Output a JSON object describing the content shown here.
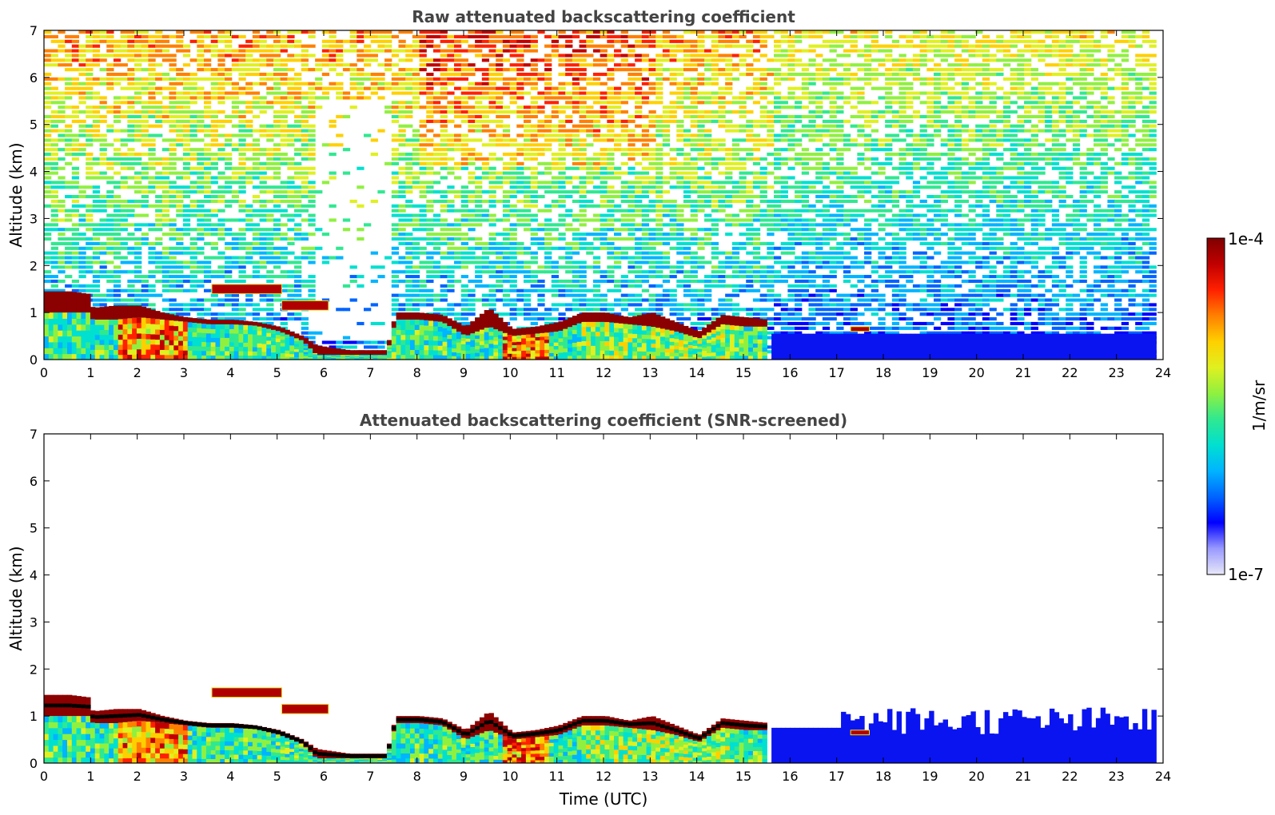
{
  "chart_data": [
    {
      "type": "heatmap",
      "title": "Raw attenuated backscattering coefficient",
      "xlabel": "",
      "ylabel": "Altitude (km)",
      "xlim": [
        0,
        24
      ],
      "ylim": [
        0,
        7
      ],
      "xticks": [
        0,
        1,
        2,
        3,
        4,
        5,
        6,
        7,
        8,
        9,
        10,
        11,
        12,
        13,
        14,
        15,
        16,
        17,
        18,
        19,
        20,
        21,
        22,
        23,
        24
      ],
      "yticks": [
        0,
        1,
        2,
        3,
        4,
        5,
        6,
        7
      ],
      "data_extent_x": [
        0,
        23.85
      ],
      "color_scale": "log",
      "cloud_layer": [
        {
          "t": 0.0,
          "top": 1.45,
          "base": 1.0
        },
        {
          "t": 0.5,
          "top": 1.45,
          "base": 1.0
        },
        {
          "t": 0.9,
          "top": 1.4,
          "base": 1.0
        },
        {
          "t": 1.0,
          "top": 1.1,
          "base": 0.85
        },
        {
          "t": 1.5,
          "top": 1.15,
          "base": 0.85
        },
        {
          "t": 2.0,
          "top": 1.15,
          "base": 0.9
        },
        {
          "t": 2.5,
          "top": 1.0,
          "base": 0.85
        },
        {
          "t": 3.0,
          "top": 0.9,
          "base": 0.8
        },
        {
          "t": 3.5,
          "top": 0.85,
          "base": 0.75
        },
        {
          "t": 4.0,
          "top": 0.85,
          "base": 0.75
        },
        {
          "t": 4.5,
          "top": 0.8,
          "base": 0.72
        },
        {
          "t": 5.0,
          "top": 0.7,
          "base": 0.6
        },
        {
          "t": 5.5,
          "top": 0.5,
          "base": 0.4
        },
        {
          "t": 5.8,
          "top": 0.3,
          "base": 0.1
        },
        {
          "t": 6.5,
          "top": 0.2,
          "base": 0.1
        },
        {
          "t": 7.3,
          "top": 0.2,
          "base": 0.1
        },
        {
          "t": 7.5,
          "top": 1.0,
          "base": 0.85
        },
        {
          "t": 8.0,
          "top": 1.0,
          "base": 0.85
        },
        {
          "t": 8.5,
          "top": 0.95,
          "base": 0.8
        },
        {
          "t": 9.0,
          "top": 0.7,
          "base": 0.5
        },
        {
          "t": 9.5,
          "top": 1.1,
          "base": 0.7
        },
        {
          "t": 10.0,
          "top": 0.65,
          "base": 0.5
        },
        {
          "t": 10.5,
          "top": 0.7,
          "base": 0.55
        },
        {
          "t": 11.0,
          "top": 0.8,
          "base": 0.6
        },
        {
          "t": 11.5,
          "top": 1.0,
          "base": 0.8
        },
        {
          "t": 12.0,
          "top": 1.0,
          "base": 0.8
        },
        {
          "t": 12.5,
          "top": 0.9,
          "base": 0.75
        },
        {
          "t": 13.0,
          "top": 1.0,
          "base": 0.7
        },
        {
          "t": 13.5,
          "top": 0.8,
          "base": 0.6
        },
        {
          "t": 14.0,
          "top": 0.6,
          "base": 0.45
        },
        {
          "t": 14.5,
          "top": 0.95,
          "base": 0.75
        },
        {
          "t": 15.0,
          "top": 0.9,
          "base": 0.7
        },
        {
          "t": 15.5,
          "top": 0.85,
          "base": 0.7
        }
      ],
      "elevated_layers": [
        {
          "t_start": 3.6,
          "t_end": 5.1,
          "top": 1.6,
          "base": 1.4
        },
        {
          "t_start": 5.1,
          "t_end": 6.1,
          "top": 1.25,
          "base": 1.05
        },
        {
          "t_start": 17.3,
          "t_end": 17.7,
          "top": 0.7,
          "base": 0.6
        }
      ]
    },
    {
      "type": "heatmap",
      "title": "Attenuated backscattering coefficient (SNR-screened)",
      "xlabel": "Time (UTC)",
      "ylabel": "Altitude (km)",
      "xlim": [
        0,
        24
      ],
      "ylim": [
        0,
        7
      ],
      "xticks": [
        0,
        1,
        2,
        3,
        4,
        5,
        6,
        7,
        8,
        9,
        10,
        11,
        12,
        13,
        14,
        15,
        16,
        17,
        18,
        19,
        20,
        21,
        22,
        23,
        24
      ],
      "yticks": [
        0,
        1,
        2,
        3,
        4,
        5,
        6,
        7
      ],
      "data_extent_x": [
        0,
        23.85
      ],
      "color_scale": "log",
      "screened_top_after_16h_km": 1.2
    }
  ],
  "colorbar": {
    "label": "1/m/sr",
    "max_label": "1e-4",
    "min_label": "1e-7",
    "range": [
      1e-07,
      0.0001
    ],
    "scale": "log",
    "colormap": [
      "#e8e8f8",
      "#9a9aff",
      "#0000ff",
      "#0064ff",
      "#00b4ff",
      "#00e0d0",
      "#30e890",
      "#90f040",
      "#e0f020",
      "#ffd000",
      "#ff8000",
      "#ff2000",
      "#c00000",
      "#800000"
    ]
  }
}
